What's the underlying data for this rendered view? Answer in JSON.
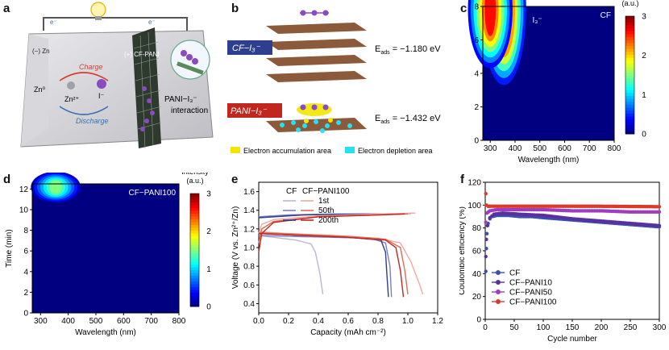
{
  "panels": {
    "a": {
      "label": "a",
      "electron_left": "e⁻",
      "electron_right": "e⁻",
      "anode": "(−)\nZn",
      "cathode": "(+)\nCF-PANI",
      "charge": "Charge",
      "discharge": "Discharge",
      "zn0": "Zn⁰",
      "zn2": "Zn²⁺",
      "iodide": "I⁻",
      "interaction_1": "PANI−I₃⁻",
      "interaction_2": "interaction",
      "colors": {
        "charge": "#d93a2b",
        "discharge": "#3a6fb5",
        "cathode": "#2f3a2f",
        "iodine": "#8a4bc2"
      }
    },
    "b": {
      "label": "b",
      "tag_cf": "CF−I₃⁻",
      "tag_pani": "PANI−I₃⁻",
      "eads_cf": "E",
      "eads_cf_sub": "ads",
      "eads_cf_val": " = −1.180 eV",
      "eads_pani": "E",
      "eads_pani_sub": "ads",
      "eads_pani_val": " = −1.432 eV",
      "legend_accum": "Electron accumulation area",
      "legend_depl": "Electron depletion area",
      "colors": {
        "cf_tag": "#2e3f8f",
        "pani_tag": "#c2271f",
        "accum": "#f2e600",
        "depl": "#27e0f0",
        "graphene": "#8a5a3a"
      }
    },
    "c": {
      "label": "c",
      "corner": "CF",
      "species": "I₃⁻",
      "cbar_title_1": "Intensity",
      "cbar_title_2": "(a.u.)"
    },
    "d": {
      "label": "d",
      "corner": "CF−PANI100",
      "cbar_title_1": "Intensity",
      "cbar_title_2": "(a.u.)"
    },
    "e": {
      "label": "e"
    },
    "f": {
      "label": "f"
    }
  },
  "chart_data": [
    {
      "id": "c",
      "type": "heatmap",
      "xlabel": "Wavelength (nm)",
      "ylabel": "Time (min)",
      "xlim": [
        270,
        800
      ],
      "ylim": [
        0,
        8
      ],
      "xticks": [
        300,
        400,
        500,
        600,
        700,
        800
      ],
      "yticks": [
        0,
        2,
        4,
        6,
        8
      ],
      "colorbar": {
        "range": [
          0,
          3
        ],
        "ticks": [
          0,
          1,
          2,
          3
        ],
        "title": "Intensity (a.u.)"
      },
      "features": [
        {
          "center_wavelength": 355,
          "time_start": 3.5,
          "time_end": 8,
          "peak_intensity": 3
        },
        {
          "center_wavelength": 300,
          "time_start": 4.5,
          "time_end": 8,
          "peak_intensity": 2.6
        }
      ]
    },
    {
      "id": "d",
      "type": "heatmap",
      "xlabel": "Wavelength (nm)",
      "ylabel": "Time (min)",
      "xlim": [
        270,
        800
      ],
      "ylim": [
        0,
        12.5
      ],
      "xticks": [
        300,
        400,
        500,
        600,
        700,
        800
      ],
      "yticks": [
        0,
        2,
        4,
        6,
        8,
        10,
        12
      ],
      "colorbar": {
        "range": [
          0,
          3
        ],
        "ticks": [
          0,
          1,
          2,
          3
        ],
        "title": "Intensity (a.u.)"
      },
      "features": [
        {
          "center_wavelength": 355,
          "time_start": 11,
          "time_end": 12.5,
          "peak_intensity": 1.5
        }
      ]
    },
    {
      "id": "e",
      "type": "line",
      "xlabel": "Capacity (mAh cm⁻²)",
      "ylabel": "Voltage (V vs. Zn²⁺/Zn)",
      "xlim": [
        0,
        1.2
      ],
      "ylim": [
        0.3,
        1.7
      ],
      "xticks": [
        0.0,
        0.2,
        0.4,
        0.6,
        0.8,
        1.0,
        1.2
      ],
      "yticks": [
        0.4,
        0.6,
        0.8,
        1.0,
        1.2,
        1.4,
        1.6
      ],
      "legend": {
        "col_cf": "CF",
        "col_pani": "CF−PANI100",
        "rows": [
          "1st",
          "50th",
          "200th"
        ]
      },
      "series": [
        {
          "sample": "CF",
          "cycle": "1st",
          "color": "#b8b8d8",
          "charge": [
            [
              0.0,
              1.33
            ],
            [
              0.1,
              1.34
            ],
            [
              0.3,
              1.35
            ],
            [
              0.6,
              1.36
            ],
            [
              0.9,
              1.36
            ],
            [
              1.0,
              1.36
            ],
            [
              1.02,
              1.36
            ]
          ],
          "discharge": [
            [
              0.0,
              1.13
            ],
            [
              0.1,
              1.11
            ],
            [
              0.25,
              1.08
            ],
            [
              0.35,
              1.04
            ],
            [
              0.38,
              0.95
            ],
            [
              0.41,
              0.72
            ],
            [
              0.43,
              0.5
            ]
          ]
        },
        {
          "sample": "CF",
          "cycle": "50th",
          "color": "#7b7fc4",
          "charge": [
            [
              0.0,
              1.33
            ],
            [
              0.2,
              1.35
            ],
            [
              0.5,
              1.36
            ],
            [
              0.8,
              1.36
            ],
            [
              1.0,
              1.36
            ]
          ],
          "discharge": [
            [
              0.0,
              1.13
            ],
            [
              0.2,
              1.12
            ],
            [
              0.5,
              1.11
            ],
            [
              0.75,
              1.1
            ],
            [
              0.85,
              1.05
            ],
            [
              0.88,
              0.8
            ],
            [
              0.89,
              0.47
            ]
          ]
        },
        {
          "sample": "CF",
          "cycle": "200th",
          "color": "#2e3f8f",
          "charge": [
            [
              0.0,
              1.32
            ],
            [
              0.3,
              1.35
            ],
            [
              0.7,
              1.36
            ],
            [
              0.95,
              1.36
            ]
          ],
          "discharge": [
            [
              0.0,
              1.15
            ],
            [
              0.3,
              1.13
            ],
            [
              0.6,
              1.11
            ],
            [
              0.82,
              1.08
            ],
            [
              0.85,
              0.95
            ],
            [
              0.86,
              0.7
            ],
            [
              0.87,
              0.47
            ]
          ]
        },
        {
          "sample": "CF-PANI100",
          "cycle": "1st",
          "color": "#f0a8a0",
          "charge": [
            [
              0.0,
              1.15
            ],
            [
              0.02,
              1.25
            ],
            [
              0.1,
              1.3
            ],
            [
              0.4,
              1.34
            ],
            [
              0.8,
              1.36
            ],
            [
              1.05,
              1.37
            ]
          ],
          "discharge": [
            [
              0.0,
              1.17
            ],
            [
              0.2,
              1.15
            ],
            [
              0.5,
              1.13
            ],
            [
              0.8,
              1.1
            ],
            [
              0.95,
              1.05
            ],
            [
              1.02,
              0.85
            ],
            [
              1.08,
              0.6
            ],
            [
              1.1,
              0.5
            ]
          ]
        },
        {
          "sample": "CF-PANI100",
          "cycle": "50th",
          "color": "#e06a55",
          "charge": [
            [
              0.0,
              1.05
            ],
            [
              0.02,
              1.2
            ],
            [
              0.1,
              1.28
            ],
            [
              0.4,
              1.33
            ],
            [
              0.8,
              1.35
            ],
            [
              1.0,
              1.36
            ]
          ],
          "discharge": [
            [
              0.0,
              1.16
            ],
            [
              0.3,
              1.14
            ],
            [
              0.6,
              1.12
            ],
            [
              0.85,
              1.09
            ],
            [
              0.95,
              1.0
            ],
            [
              0.98,
              0.75
            ],
            [
              1.0,
              0.5
            ]
          ]
        },
        {
          "sample": "CF-PANI100",
          "cycle": "200th",
          "color": "#c2271f",
          "charge": [
            [
              0.0,
              0.95
            ],
            [
              0.02,
              1.15
            ],
            [
              0.1,
              1.27
            ],
            [
              0.4,
              1.33
            ],
            [
              0.8,
              1.35
            ],
            [
              0.98,
              1.36
            ]
          ],
          "discharge": [
            [
              0.0,
              1.15
            ],
            [
              0.3,
              1.13
            ],
            [
              0.6,
              1.11
            ],
            [
              0.85,
              1.08
            ],
            [
              0.92,
              1.0
            ],
            [
              0.95,
              0.75
            ],
            [
              0.97,
              0.47
            ]
          ]
        }
      ]
    },
    {
      "id": "f",
      "type": "scatter",
      "xlabel": "Cycle number",
      "ylabel": "Coulombic efficiency (%)",
      "xlim": [
        0,
        300
      ],
      "ylim": [
        0,
        120
      ],
      "xticks": [
        0,
        50,
        100,
        150,
        200,
        250,
        300
      ],
      "yticks": [
        0,
        20,
        40,
        60,
        80,
        100,
        120
      ],
      "legend_position": "bottom-left",
      "series": [
        {
          "name": "CF",
          "color": "#3a4fb0",
          "points": [
            [
              1,
              42
            ],
            [
              2,
              62
            ],
            [
              3,
              75
            ],
            [
              5,
              84
            ],
            [
              8,
              88
            ],
            [
              12,
              90
            ],
            [
              20,
              91
            ],
            [
              40,
              91
            ],
            [
              60,
              90
            ],
            [
              80,
              90
            ],
            [
              100,
              89
            ],
            [
              150,
              87
            ],
            [
              200,
              85
            ],
            [
              250,
              83
            ],
            [
              300,
              81
            ]
          ]
        },
        {
          "name": "CF−PANI10",
          "color": "#5a2fa0",
          "points": [
            [
              1,
              55
            ],
            [
              2,
              70
            ],
            [
              4,
              82
            ],
            [
              8,
              89
            ],
            [
              15,
              92
            ],
            [
              30,
              93
            ],
            [
              60,
              92
            ],
            [
              100,
              91
            ],
            [
              150,
              88
            ],
            [
              200,
              86
            ],
            [
              250,
              84
            ],
            [
              300,
              82
            ]
          ]
        },
        {
          "name": "CF−PANI50",
          "color": "#a03cc0",
          "points": [
            [
              1,
              85
            ],
            [
              3,
              93
            ],
            [
              8,
              95
            ],
            [
              20,
              96
            ],
            [
              50,
              96
            ],
            [
              100,
              96
            ],
            [
              150,
              95
            ],
            [
              200,
              95
            ],
            [
              250,
              94
            ],
            [
              300,
              94
            ]
          ]
        },
        {
          "name": "CF−PANI100",
          "color": "#d93a2b",
          "points": [
            [
              1,
              110
            ],
            [
              2,
              100
            ],
            [
              5,
              99
            ],
            [
              10,
              99
            ],
            [
              50,
              99
            ],
            [
              100,
              99
            ],
            [
              150,
              99
            ],
            [
              200,
              99
            ],
            [
              250,
              98.8
            ],
            [
              300,
              98.6
            ]
          ]
        }
      ]
    }
  ]
}
